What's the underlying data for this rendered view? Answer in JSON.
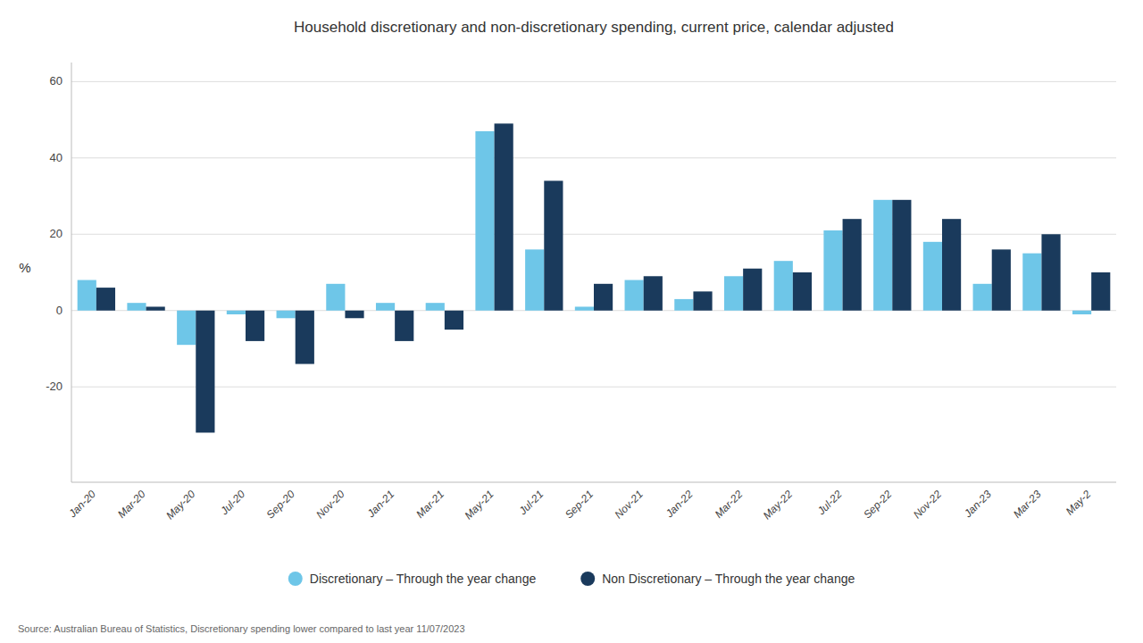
{
  "chart_data": {
    "type": "bar",
    "title": "Household discretionary and non-discretionary spending, current price, calendar adjusted",
    "y_label": "%",
    "source": "Source: Australian Bureau of Statistics, Discretionary spending lower compared to last year 11/07/2023",
    "categories": [
      "Jan-20",
      "Mar-20",
      "May-20",
      "Jul-20",
      "Sep-20",
      "Nov-20",
      "Jan-21",
      "Mar-21",
      "May-21",
      "Jul-21",
      "Sep-21",
      "Nov-21",
      "Jan-22",
      "Mar-22",
      "May-22",
      "Jul-22",
      "Sep-22",
      "Nov-22",
      "Jan-23",
      "Mar-23",
      "May-2"
    ],
    "series": [
      {
        "name": "Discretionary – Through the year change",
        "color": "#6ec6e8",
        "values": [
          8,
          2,
          -9,
          -1,
          -2,
          7,
          2,
          2,
          47,
          16,
          1,
          8,
          3,
          9,
          13,
          21,
          29,
          18,
          7,
          15,
          -1
        ]
      },
      {
        "name": "Non Discretionary – Through the year change",
        "color": "#1a3a5c",
        "values": [
          6,
          1,
          -32,
          -8,
          -14,
          -2,
          -8,
          -5,
          49,
          34,
          7,
          9,
          5,
          11,
          10,
          24,
          29,
          24,
          16,
          20,
          10
        ]
      }
    ],
    "ylim": [
      -45,
      65
    ],
    "yticks": [
      -20,
      0,
      20,
      40,
      60
    ],
    "grid": true,
    "legend": "bottom"
  }
}
